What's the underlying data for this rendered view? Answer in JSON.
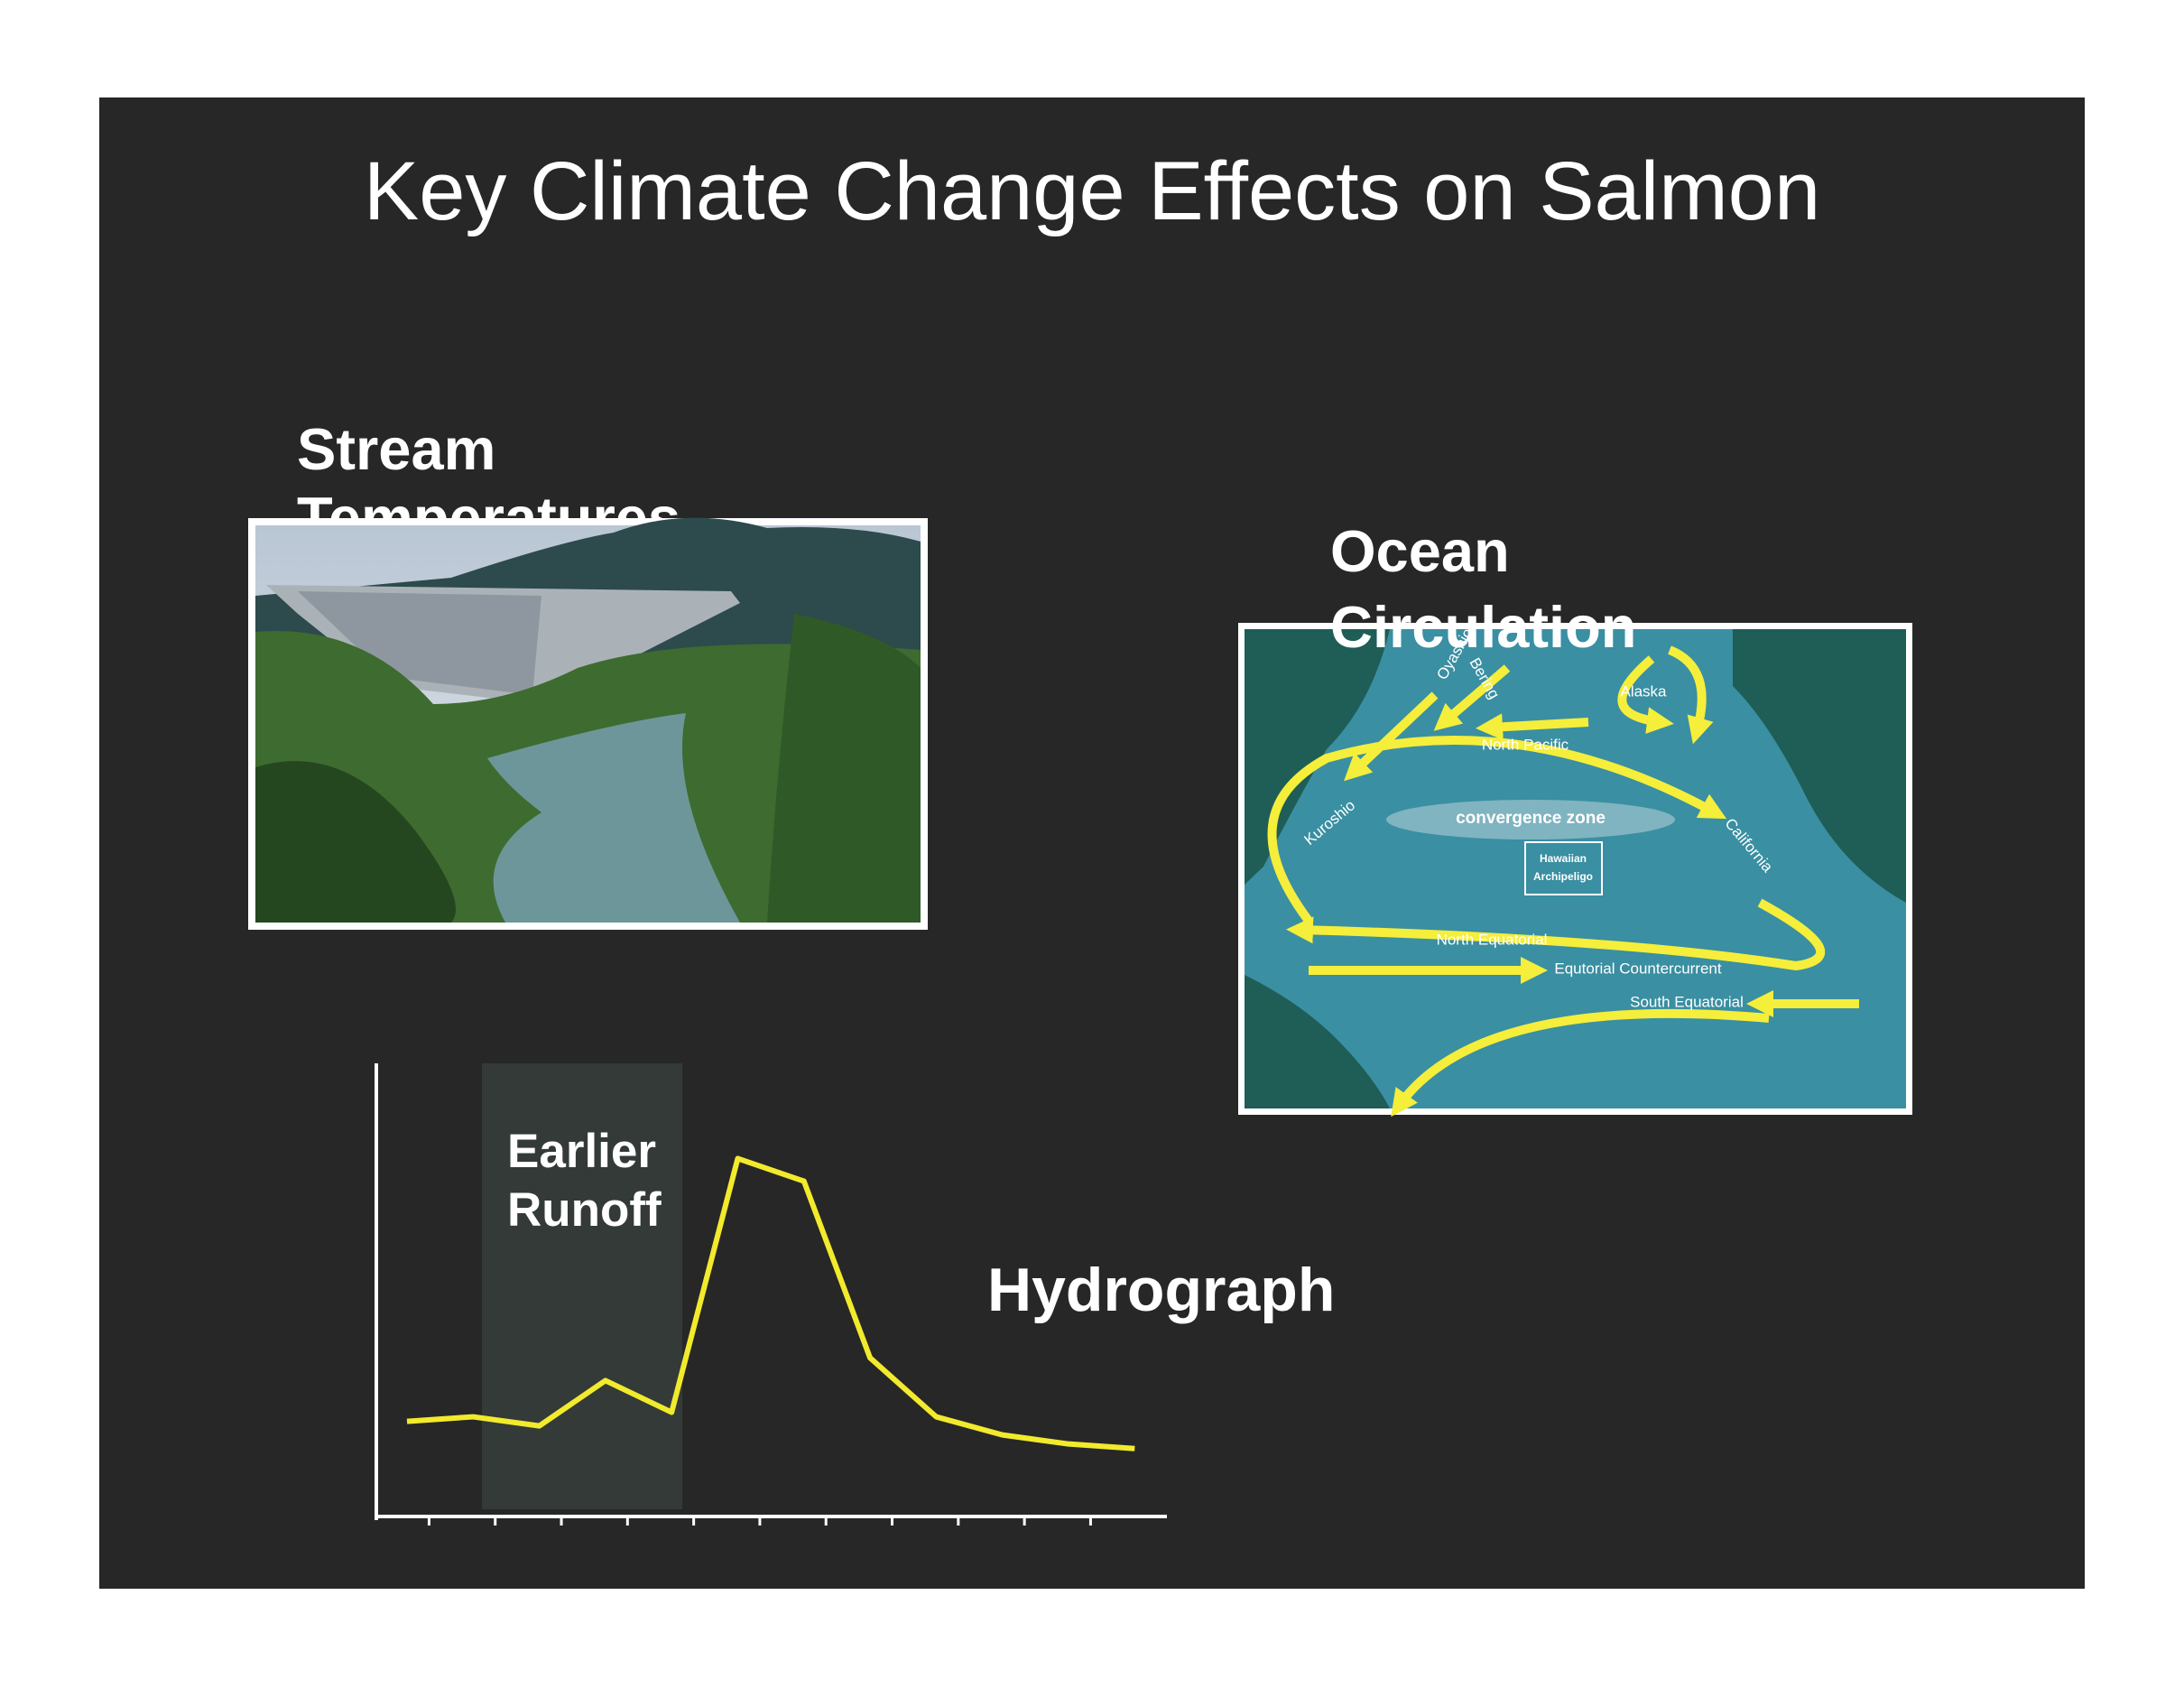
{
  "title": "Key Climate Change Effects on Salmon",
  "stream_label": "Stream Temperatures",
  "ocean_label": "Ocean Circulation",
  "map": {
    "labels": [
      "Oyashio",
      "Bering",
      "Alaska",
      "North Pacific",
      "convergence zone",
      "Kuroshio",
      "California",
      "Hawaiian",
      "Archipeligo",
      "North Equatorial",
      "Equtorial Countercurrent",
      "South Equatorial"
    ]
  },
  "chart_data": {
    "type": "line",
    "title": "Hydrograph",
    "annotation": "Earlier Runoff",
    "categories": [
      null,
      null,
      null,
      null,
      null,
      null,
      null,
      null,
      null,
      null,
      null,
      null
    ],
    "series": [
      {
        "color": "#f2ea2c",
        "values": [
          21,
          22,
          20,
          30,
          23,
          79,
          74,
          35,
          22,
          18,
          16,
          15
        ]
      }
    ],
    "ylim": [
      0,
      100
    ]
  }
}
